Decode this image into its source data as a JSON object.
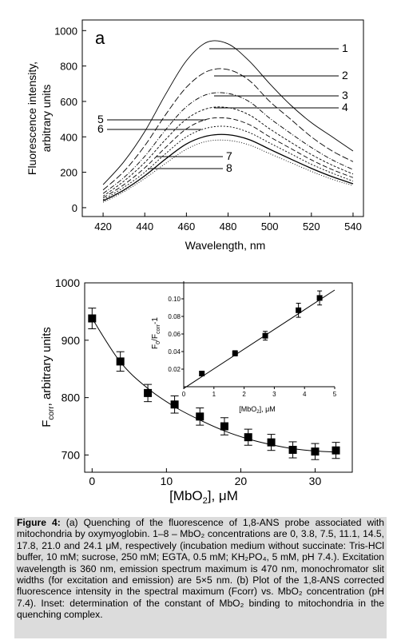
{
  "chart_data": [
    {
      "type": "line",
      "panel_label": "a",
      "xlabel": "Wavelength, nm",
      "ylabel_line1": "Fluorescence intensity,",
      "ylabel_line2": "arbitrary units",
      "xlim": [
        410,
        545
      ],
      "ylim": [
        -50,
        1060
      ],
      "xticks": [
        420,
        440,
        460,
        480,
        500,
        520,
        540
      ],
      "yticks": [
        0,
        200,
        400,
        600,
        800,
        1000
      ],
      "x": [
        420,
        430,
        440,
        450,
        460,
        470,
        480,
        490,
        500,
        510,
        520,
        530,
        540
      ],
      "series": [
        {
          "name": "1",
          "values": [
            130,
            260,
            430,
            640,
            830,
            935,
            925,
            830,
            700,
            580,
            480,
            400,
            320
          ]
        },
        {
          "name": "2",
          "values": [
            100,
            205,
            350,
            525,
            680,
            770,
            780,
            720,
            600,
            500,
            400,
            320,
            260
          ]
        },
        {
          "name": "3",
          "values": [
            80,
            170,
            290,
            440,
            570,
            640,
            645,
            600,
            505,
            420,
            340,
            270,
            215
          ]
        },
        {
          "name": "4",
          "values": [
            65,
            150,
            255,
            385,
            500,
            560,
            565,
            525,
            445,
            370,
            300,
            240,
            190
          ]
        },
        {
          "name": "5",
          "values": [
            55,
            130,
            225,
            340,
            445,
            500,
            505,
            470,
            400,
            335,
            270,
            215,
            170
          ]
        },
        {
          "name": "6",
          "values": [
            45,
            115,
            200,
            305,
            400,
            450,
            458,
            425,
            365,
            305,
            245,
            195,
            150
          ]
        },
        {
          "name": "7",
          "values": [
            38,
            100,
            180,
            275,
            360,
            405,
            412,
            385,
            330,
            275,
            222,
            175,
            135
          ]
        },
        {
          "name": "8",
          "values": [
            30,
            90,
            165,
            250,
            330,
            375,
            380,
            355,
            305,
            255,
            205,
            160,
            125
          ]
        }
      ],
      "line_labels": [
        "1",
        "2",
        "3",
        "4",
        "5",
        "6",
        "7",
        "8"
      ]
    },
    {
      "type": "scatter",
      "xlabel": "[MbO2], μM",
      "ylabel": "F corr , arbitrary units",
      "xlim": [
        -1,
        35
      ],
      "ylim": [
        670,
        1000
      ],
      "xticks": [
        0,
        10,
        20,
        30
      ],
      "yticks": [
        700,
        800,
        900,
        1000
      ],
      "x": [
        0,
        3.8,
        7.5,
        11.1,
        14.5,
        17.8,
        21.0,
        24.1,
        27.0,
        30.0,
        32.8
      ],
      "y": [
        938,
        863,
        808,
        788,
        767,
        750,
        731,
        722,
        709,
        706,
        708
      ],
      "error": [
        18,
        17,
        15,
        15,
        15,
        15,
        14,
        14,
        14,
        14,
        14
      ],
      "fit_y": [
        938,
        862,
        816,
        784,
        761,
        742,
        728,
        718,
        711,
        707,
        705
      ]
    },
    {
      "type": "scatter",
      "inset": true,
      "xlabel": "[MbO2], μM",
      "ylabel": "F0/Fcorr -1",
      "xlim": [
        0,
        5
      ],
      "ylim": [
        0,
        0.12
      ],
      "xticks": [
        0,
        1,
        2,
        3,
        4,
        5
      ],
      "yticks": [
        0.02,
        0.04,
        0.06,
        0.08,
        0.1
      ],
      "ytick_labels": [
        "0.02",
        "0.04",
        "0.06",
        "0.08",
        "0.10"
      ],
      "x": [
        0.6,
        1.7,
        2.7,
        3.8,
        4.5
      ],
      "y": [
        0.015,
        0.038,
        0.058,
        0.087,
        0.101
      ],
      "error": [
        0,
        0.003,
        0.005,
        0.008,
        0.008
      ],
      "fit": [
        [
          0,
          -0.002
        ],
        [
          5,
          0.11
        ]
      ]
    }
  ],
  "caption": {
    "label": "Figure 4:",
    "text": " (a) Quenching of the fluorescence of 1,8-ANS probe associated with mitochondria by oxymyoglobin. 1–8 – MbO₂ concentrations are 0, 3.8, 7.5, 11.1, 14.5, 17.8, 21.0 and 24.1 μM, respectively (incubation medium without succinate: Tris-HCl buffer, 10 mM; sucrose, 250 mM; EGTA, 0.5 mM; KH₂PO₄, 5 mM, pH 7.4.). Excitation wavelength is 360 nm, emission spectrum maximum is 470 nm, monochromator slit widths (for excitation and emission) are 5×5 nm. (b) Plot of the 1,8-ANS corrected fluorescence intensity in the spectral maximum (Fcorr) vs. MbO₂ concentration (pH 7.4). Inset: determination of the constant of MbO₂ binding to mitochondria in the quenching complex."
  }
}
